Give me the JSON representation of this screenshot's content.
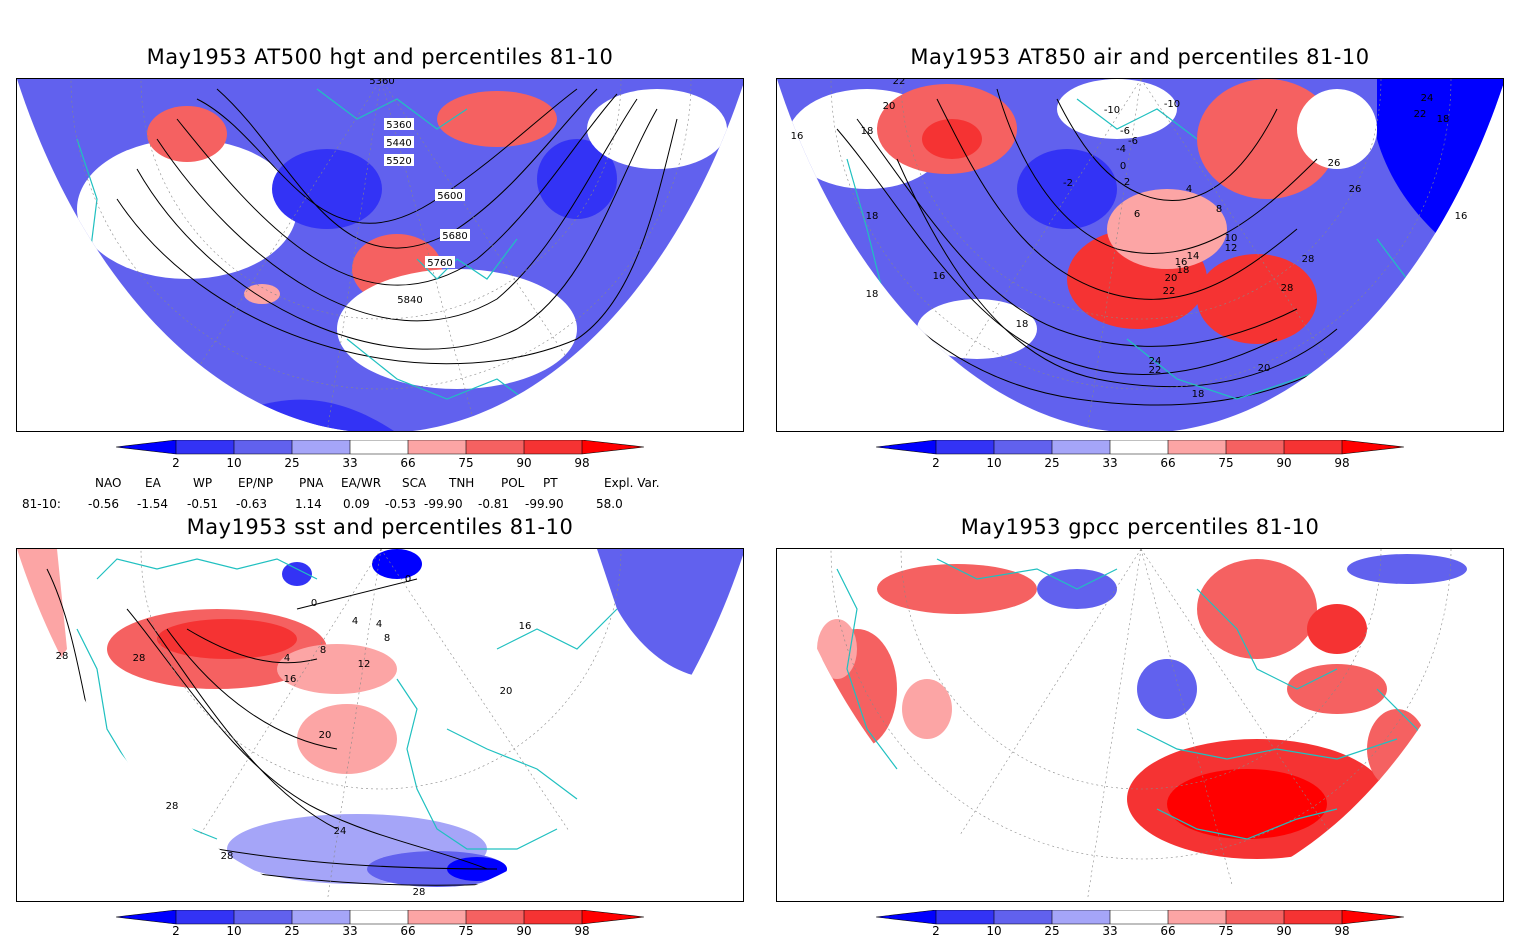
{
  "panels": [
    {
      "id": "p1",
      "title": "May1953 AT500 hgt and percentiles 81-10",
      "contour_labels": [
        "5360",
        "5440",
        "5520",
        "5600",
        "5680",
        "5760",
        "5840",
        "5360"
      ]
    },
    {
      "id": "p2",
      "title": "May1953 AT850 air and percentiles 81-10",
      "contour_labels": [
        "22",
        "20",
        "18",
        "16",
        "18",
        "16",
        "18",
        "-10",
        "-10",
        "-6",
        "-6",
        "-4",
        "0",
        "-2",
        "2",
        "4",
        "6",
        "8",
        "10",
        "12",
        "14",
        "16",
        "18",
        "20",
        "22",
        "24",
        "22",
        "20",
        "18",
        "26",
        "28",
        "26",
        "24",
        "22",
        "18",
        "16",
        "18",
        "28"
      ]
    },
    {
      "id": "p3",
      "title": "May1953 sst and percentiles 81-10",
      "contour_labels": [
        "28",
        "28",
        "0",
        "0",
        "4",
        "4",
        "8",
        "4",
        "8",
        "12",
        "16",
        "16",
        "20",
        "20",
        "24",
        "28",
        "28",
        "28"
      ]
    },
    {
      "id": "p4",
      "title": "May1953 gpcc percentiles 81-10",
      "contour_labels": []
    }
  ],
  "colorbar": {
    "ticks": [
      "2",
      "10",
      "25",
      "33",
      "66",
      "75",
      "90",
      "98"
    ],
    "colors": {
      "lt2": "#0000ff",
      "b2_10": "#3333f5",
      "b10_25": "#6161ee",
      "b25_33": "#a5a5f8",
      "neutral": "#ffffff",
      "r66_75": "#fca5a5",
      "r75_90": "#f56161",
      "r90_98": "#f53333",
      "gt98": "#ff0000"
    }
  },
  "indices": {
    "headers": [
      "NAO",
      "EA",
      "WP",
      "EP/NP",
      "PNA",
      "EA/WR",
      "SCA",
      "TNH",
      "POL",
      "PT",
      "Expl. Var."
    ],
    "row_label": "81-10:",
    "values": [
      "-0.56",
      "-1.54",
      "-0.51",
      "-0.63",
      "1.14",
      "0.09",
      "-0.53",
      "-99.90",
      "-0.81",
      "-99.90",
      "58.0"
    ]
  },
  "colors": {
    "coast": "#20c0c0",
    "contour": "#000000",
    "graticule": "#888888"
  }
}
